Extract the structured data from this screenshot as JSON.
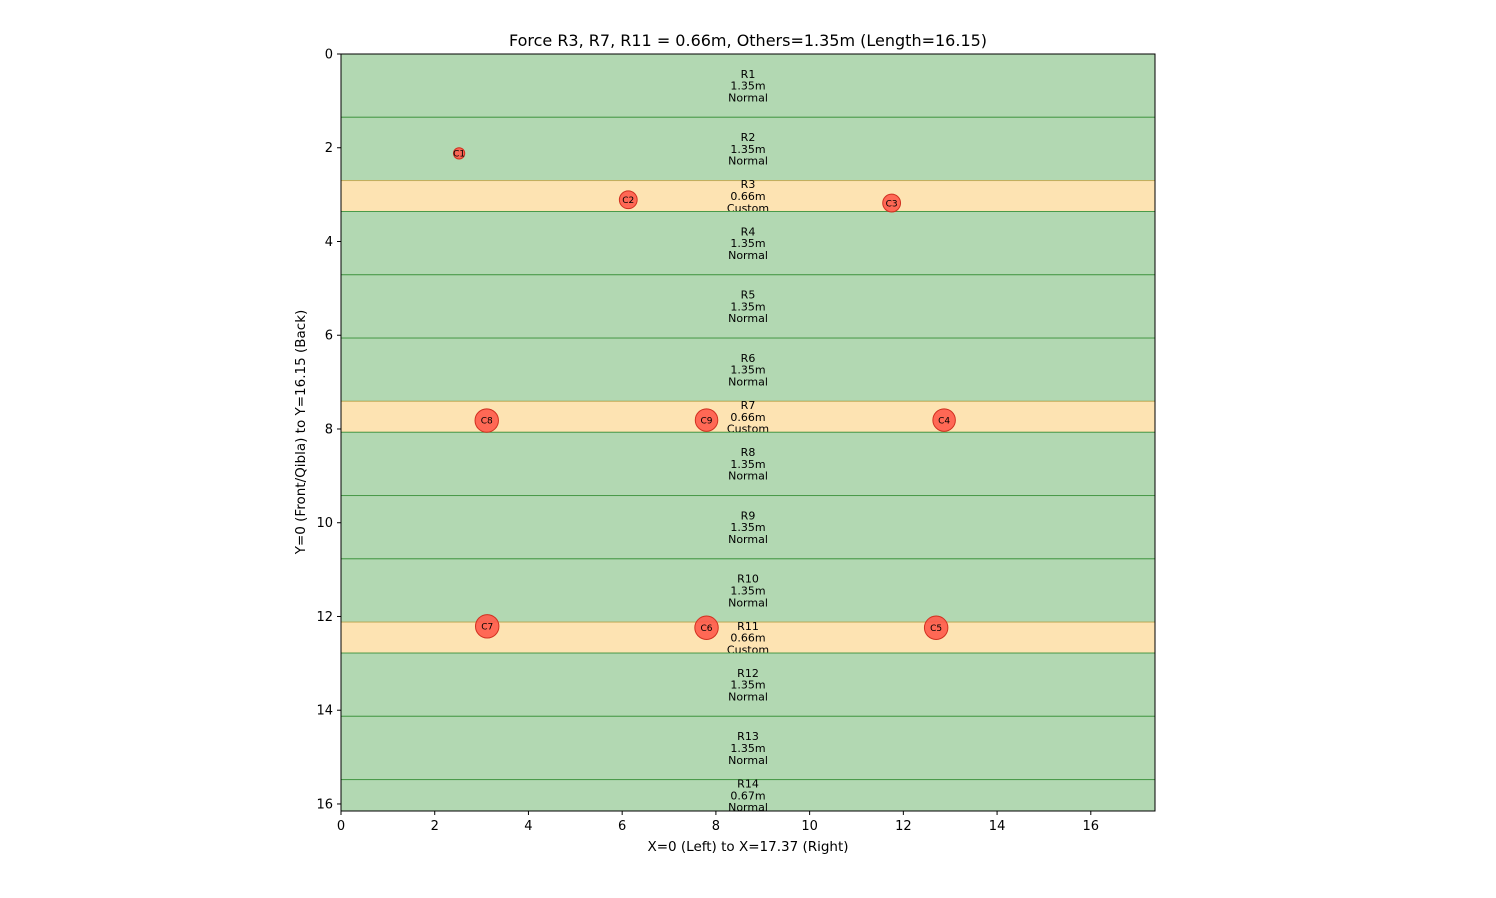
{
  "chart_data": {
    "type": "scatter",
    "title": "Force R3, R7, R11 = 0.66m, Others=1.35m (Length=16.15)",
    "xlabel": "X=0 (Left) to X=17.37 (Right)",
    "ylabel": "Y=0 (Front/Qibla) to Y=16.15 (Back)",
    "xlim": [
      0,
      17.37
    ],
    "ylim": [
      16.15,
      0
    ],
    "x_ticks": [
      0,
      2,
      4,
      6,
      8,
      10,
      12,
      14,
      16
    ],
    "y_ticks": [
      0,
      2,
      4,
      6,
      8,
      10,
      12,
      14,
      16
    ],
    "grid": false,
    "colors": {
      "normal_fill": "#b2d8b2",
      "normal_edge": "#4a9a4a",
      "custom_fill": "#fde3b2",
      "custom_edge": "#c8b060",
      "column_fill": "#ff5a4a",
      "column_edge": "#d03020"
    },
    "rows": [
      {
        "id": "R1",
        "width_label": "1.35m",
        "type": "Normal",
        "y_start": 0.0,
        "height": 1.35
      },
      {
        "id": "R2",
        "width_label": "1.35m",
        "type": "Normal",
        "y_start": 1.35,
        "height": 1.35
      },
      {
        "id": "R3",
        "width_label": "0.66m",
        "type": "Custom",
        "y_start": 2.7,
        "height": 0.66
      },
      {
        "id": "R4",
        "width_label": "1.35m",
        "type": "Normal",
        "y_start": 3.36,
        "height": 1.35
      },
      {
        "id": "R5",
        "width_label": "1.35m",
        "type": "Normal",
        "y_start": 4.71,
        "height": 1.35
      },
      {
        "id": "R6",
        "width_label": "1.35m",
        "type": "Normal",
        "y_start": 6.06,
        "height": 1.35
      },
      {
        "id": "R7",
        "width_label": "0.66m",
        "type": "Custom",
        "y_start": 7.41,
        "height": 0.66
      },
      {
        "id": "R8",
        "width_label": "1.35m",
        "type": "Normal",
        "y_start": 8.07,
        "height": 1.35
      },
      {
        "id": "R9",
        "width_label": "1.35m",
        "type": "Normal",
        "y_start": 9.42,
        "height": 1.35
      },
      {
        "id": "R10",
        "width_label": "1.35m",
        "type": "Normal",
        "y_start": 10.77,
        "height": 1.35
      },
      {
        "id": "R11",
        "width_label": "0.66m",
        "type": "Custom",
        "y_start": 12.12,
        "height": 0.66
      },
      {
        "id": "R12",
        "width_label": "1.35m",
        "type": "Normal",
        "y_start": 12.78,
        "height": 1.35
      },
      {
        "id": "R13",
        "width_label": "1.35m",
        "type": "Normal",
        "y_start": 14.13,
        "height": 1.35
      },
      {
        "id": "R14",
        "width_label": "0.67m",
        "type": "Normal",
        "y_start": 15.48,
        "height": 0.67
      }
    ],
    "columns": [
      {
        "label": "C1",
        "x": 2.52,
        "y": 2.12,
        "r": 0.12
      },
      {
        "label": "C2",
        "x": 6.13,
        "y": 3.11,
        "r": 0.19
      },
      {
        "label": "C3",
        "x": 11.75,
        "y": 3.18,
        "r": 0.19
      },
      {
        "label": "C4",
        "x": 12.87,
        "y": 7.81,
        "r": 0.24
      },
      {
        "label": "C5",
        "x": 12.7,
        "y": 12.24,
        "r": 0.25
      },
      {
        "label": "C6",
        "x": 7.8,
        "y": 12.24,
        "r": 0.25
      },
      {
        "label": "C7",
        "x": 3.12,
        "y": 12.21,
        "r": 0.25
      },
      {
        "label": "C8",
        "x": 3.11,
        "y": 7.82,
        "r": 0.25
      },
      {
        "label": "C9",
        "x": 7.8,
        "y": 7.81,
        "r": 0.24
      }
    ]
  }
}
